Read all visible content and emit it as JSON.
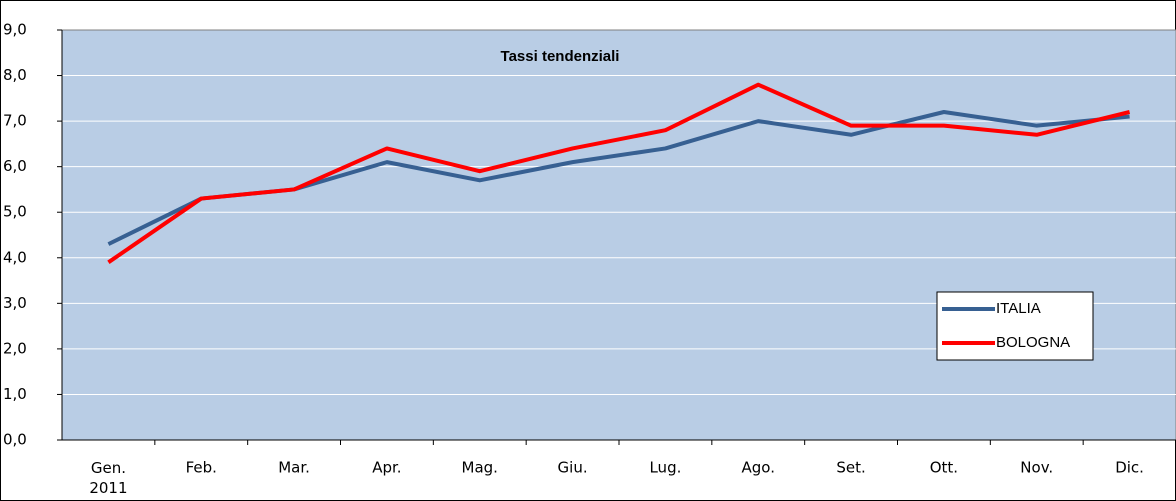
{
  "chart_data": {
    "type": "line",
    "title": "Tassi tendenziali",
    "categories": [
      "Gen.\n2011",
      "Feb.",
      "Mar.",
      "Apr.",
      "Mag.",
      "Giu.",
      "Lug.",
      "Ago.",
      "Set.",
      "Ott.",
      "Nov.",
      "Dic."
    ],
    "series": [
      {
        "name": "ITALIA",
        "color": "#376092",
        "values": [
          4.3,
          5.3,
          5.5,
          6.1,
          5.7,
          6.1,
          6.4,
          7.0,
          6.7,
          7.2,
          6.9,
          7.1
        ]
      },
      {
        "name": "BOLOGNA",
        "color": "#ff0000",
        "values": [
          3.9,
          5.3,
          5.5,
          6.4,
          5.9,
          6.4,
          6.8,
          7.8,
          6.9,
          6.9,
          6.7,
          7.2
        ]
      }
    ],
    "ylim": [
      0,
      9
    ],
    "yticks": [
      {
        "value": 0,
        "label": "0,0"
      },
      {
        "value": 1,
        "label": "1,0"
      },
      {
        "value": 2,
        "label": "2,0"
      },
      {
        "value": 3,
        "label": "3,0"
      },
      {
        "value": 4,
        "label": "4,0"
      },
      {
        "value": 5,
        "label": "5,0"
      },
      {
        "value": 6,
        "label": "6,0"
      },
      {
        "value": 7,
        "label": "7,0"
      },
      {
        "value": 8,
        "label": "8,0"
      },
      {
        "value": 9,
        "label": "9,0"
      }
    ],
    "grid": true
  }
}
